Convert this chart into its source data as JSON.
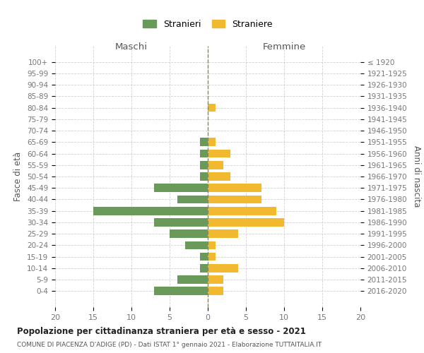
{
  "age_groups": [
    "100+",
    "95-99",
    "90-94",
    "85-89",
    "80-84",
    "75-79",
    "70-74",
    "65-69",
    "60-64",
    "55-59",
    "50-54",
    "45-49",
    "40-44",
    "35-39",
    "30-34",
    "25-29",
    "20-24",
    "15-19",
    "10-14",
    "5-9",
    "0-4"
  ],
  "birth_years": [
    "≤ 1920",
    "1921-1925",
    "1926-1930",
    "1931-1935",
    "1936-1940",
    "1941-1945",
    "1946-1950",
    "1951-1955",
    "1956-1960",
    "1961-1965",
    "1966-1970",
    "1971-1975",
    "1976-1980",
    "1981-1985",
    "1986-1990",
    "1991-1995",
    "1996-2000",
    "2001-2005",
    "2006-2010",
    "2011-2015",
    "2016-2020"
  ],
  "maschi": [
    0,
    0,
    0,
    0,
    0,
    0,
    0,
    1,
    1,
    1,
    1,
    7,
    4,
    15,
    7,
    5,
    3,
    1,
    1,
    4,
    7
  ],
  "femmine": [
    0,
    0,
    0,
    0,
    1,
    0,
    0,
    1,
    3,
    2,
    3,
    7,
    7,
    9,
    10,
    4,
    1,
    1,
    4,
    2,
    2
  ],
  "color_maschi": "#6a9a5a",
  "color_femmine": "#f0b930",
  "title": "Popolazione per cittadinanza straniera per età e sesso - 2021",
  "subtitle": "COMUNE DI PIACENZA D'ADIGE (PD) - Dati ISTAT 1° gennaio 2021 - Elaborazione TUTTAITALIA.IT",
  "xlabel_left": "Maschi",
  "xlabel_right": "Femmine",
  "ylabel_left": "Fasce di età",
  "ylabel_right": "Anni di nascita",
  "xlim": 20,
  "legend_stranieri": "Stranieri",
  "legend_straniere": "Straniere",
  "background_color": "#ffffff",
  "grid_color": "#cccccc"
}
